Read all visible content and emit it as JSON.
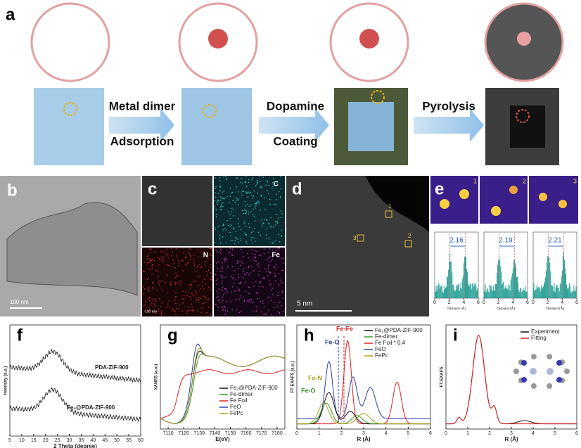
{
  "panel_a": {
    "letter": "a",
    "steps": [
      "Metal dimer",
      "Adsorption",
      "Dopamine",
      "Coating",
      "Pyrolysis"
    ]
  },
  "panel_b": {
    "letter": "b",
    "scale": "100 nm"
  },
  "panel_c": {
    "letter": "c",
    "maps": [
      "C",
      "N",
      "Fe"
    ],
    "scale": "100 nm"
  },
  "panel_d": {
    "letter": "d",
    "scale": "5 nm",
    "sites": [
      "1",
      "2",
      "3"
    ]
  },
  "panel_e": {
    "letter": "e",
    "images": [
      "1",
      "2",
      "3"
    ],
    "distances": [
      "2.16",
      "2.19",
      "2.21"
    ],
    "xlabel": "Distance (Å)",
    "xlim": [
      0,
      6
    ],
    "xticks": [
      0,
      2,
      4,
      6
    ]
  },
  "panel_f": {
    "letter": "f",
    "ylabel": "Intensity (a.u.)",
    "xlabel": "2 Theta (degree)",
    "xlim": [
      5,
      60
    ],
    "xticks": [
      5,
      10,
      15,
      20,
      25,
      30,
      35,
      40,
      45,
      50,
      55,
      60
    ],
    "curve_labels": [
      "PDA-ZIF-900",
      "Fe₂@PDA-ZIF-900"
    ]
  },
  "panel_g": {
    "letter": "g",
    "ylabel": "XANES (a.u.)",
    "xlabel": "E(eV)",
    "xlim": [
      7105,
      7185
    ],
    "xticks": [
      7110,
      7120,
      7130,
      7140,
      7150,
      7160,
      7170,
      7180
    ],
    "legend": [
      "Fe₂@PDA-ZIF-900",
      "Fe-dimer",
      "Fe Foil",
      "FeO",
      "FePc"
    ]
  },
  "panel_h": {
    "letter": "h",
    "ylabel": "FT EXAFS (a.u.)",
    "xlabel": "R (Å)",
    "xlim": [
      0,
      6
    ],
    "xticks": [
      0,
      1,
      2,
      3,
      4,
      5,
      6
    ],
    "legend": [
      "Fe₂@PDA-ZIF-900",
      "Fe-dimer",
      "Fe Foil * 0.4",
      "FeO",
      "FePc"
    ],
    "annotations": [
      "Fe-O",
      "Fe-Fe",
      "Fe-N",
      "Fe-O"
    ]
  },
  "panel_i": {
    "letter": "i",
    "ylabel": "FT EXAFS",
    "xlabel": "R (Å)",
    "xlim": [
      0,
      6
    ],
    "xticks": [
      0,
      1,
      2,
      3,
      4,
      5,
      6
    ],
    "legend": [
      "Experiment",
      "Fitting"
    ]
  }
}
